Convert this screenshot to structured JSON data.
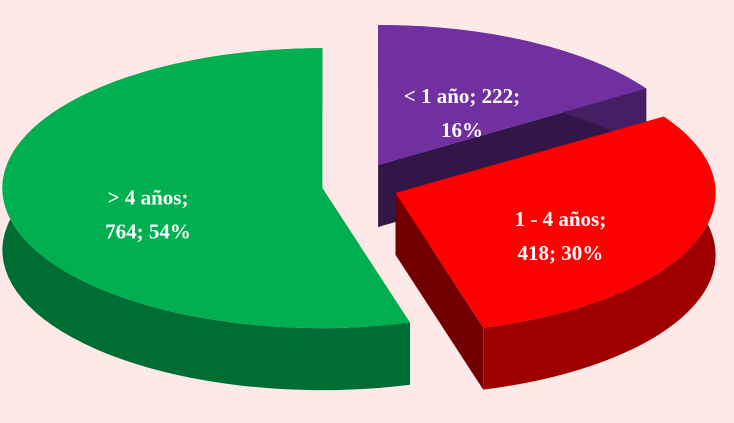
{
  "chart_data": {
    "type": "pie3d",
    "values": [
      222,
      418,
      764
    ],
    "value_labels": [
      [
        "< 1 año; 222;",
        "16%"
      ],
      [
        "1 - 4 años;",
        "418; 30%"
      ],
      [
        "> 4 años;",
        "764; 54%"
      ]
    ],
    "colors": [
      "#7030a0",
      "#ff0000",
      "#00b050"
    ]
  }
}
